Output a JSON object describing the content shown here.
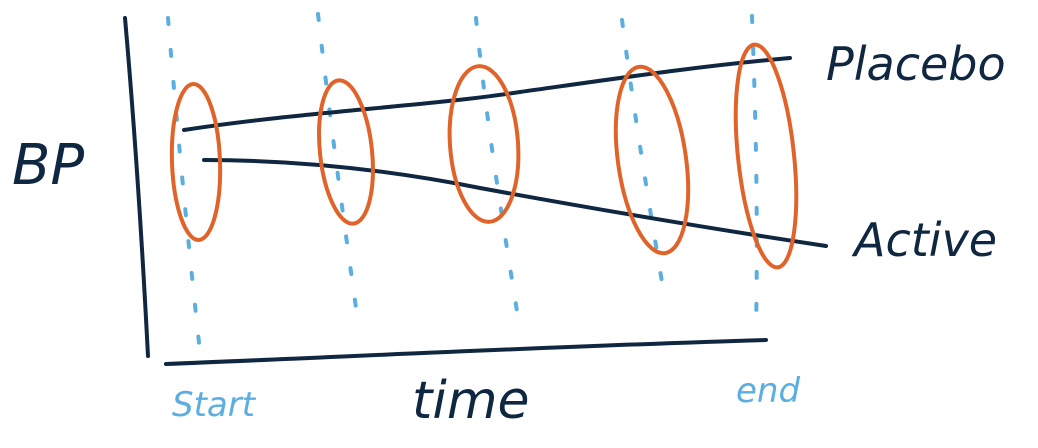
{
  "diagram": {
    "y_axis_label": "BP",
    "x_axis_label": "time",
    "x_start_label": "Start",
    "x_end_label": "end",
    "lines": [
      {
        "label": "Placebo"
      },
      {
        "label": "Active"
      }
    ],
    "colors": {
      "ink": "#0f2740",
      "dashes": "#5aaee0",
      "ellipses": "#e0642a",
      "timepoint_labels": "#5aaee0"
    },
    "timepoints_count": 5
  }
}
